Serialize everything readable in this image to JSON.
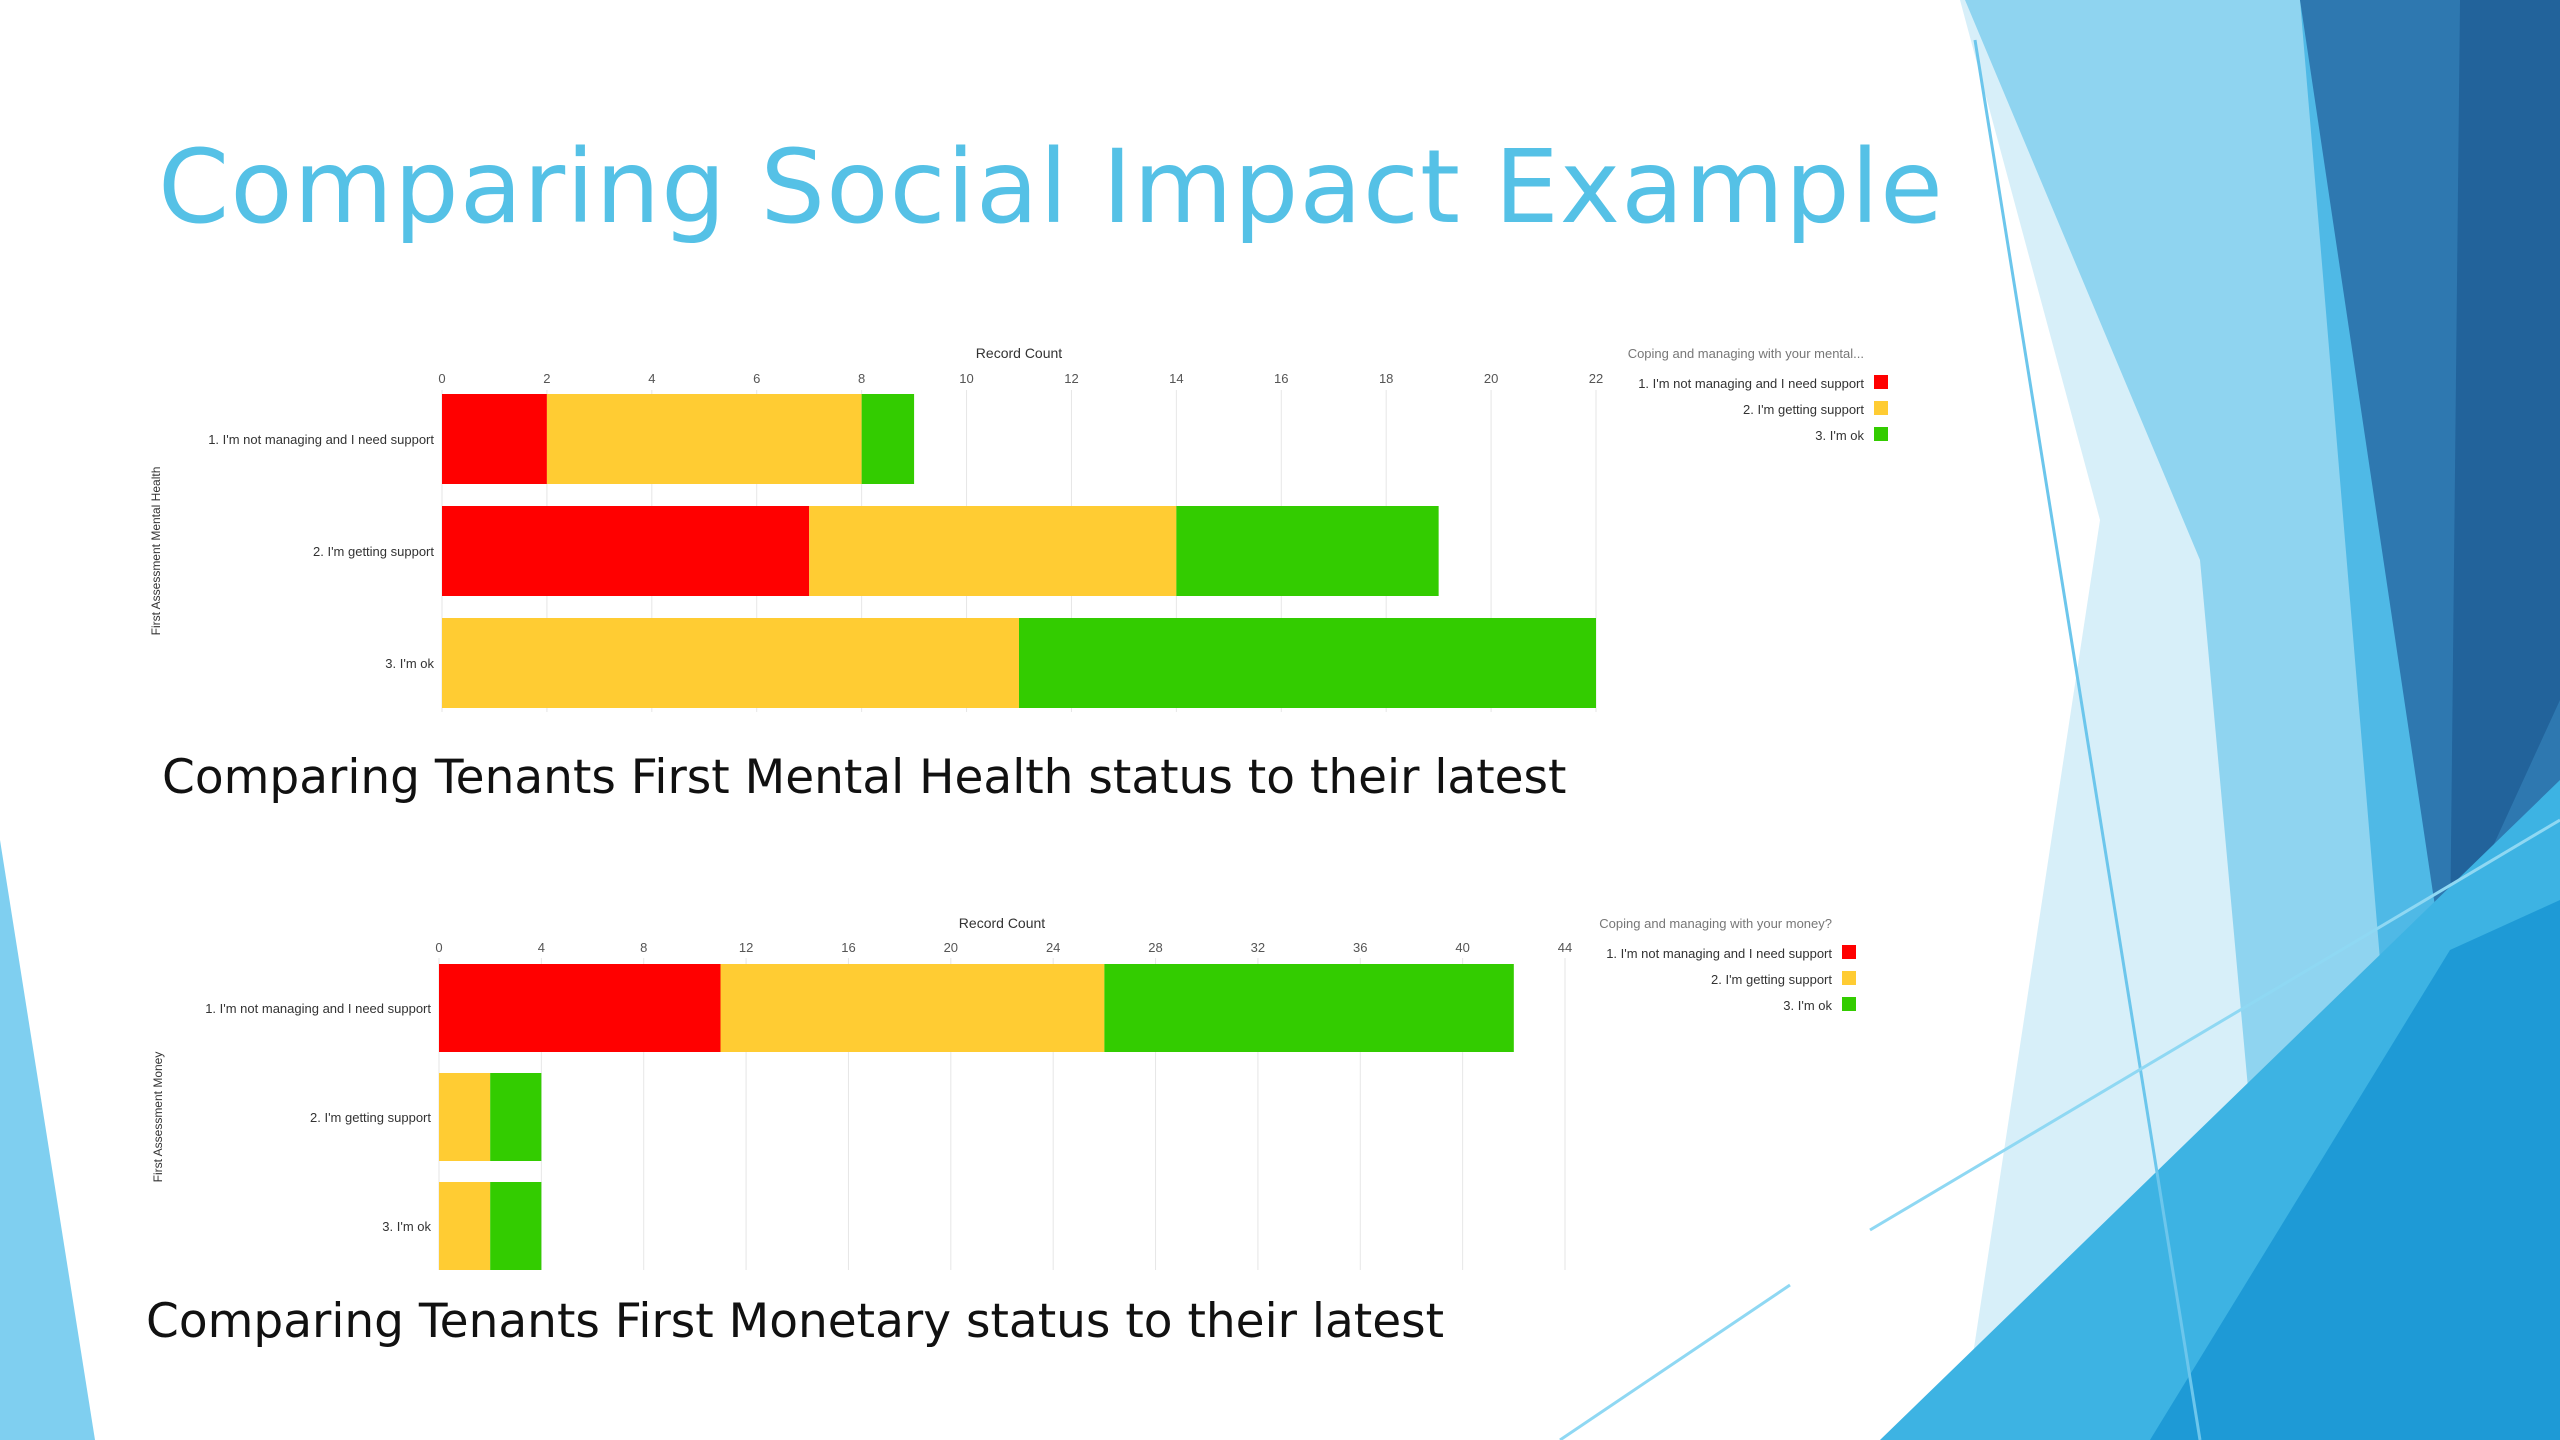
{
  "slide": {
    "title": "Comparing Social Impact Example",
    "captions": [
      "Comparing Tenants First Mental Health status to their latest",
      "Comparing Tenants First Monetary status to their latest"
    ]
  },
  "colors": {
    "title": "#55c1e6",
    "series": [
      "#ff0000",
      "#ffcc33",
      "#33cc00"
    ],
    "deco_light": "#aee0f5",
    "deco_mid": "#5cc4ea",
    "deco_dark": "#2e78b0"
  },
  "chart_data": [
    {
      "type": "bar",
      "orientation": "horizontal",
      "stacked": true,
      "xlabel": "Record Count",
      "ylabel": "First Assessment Mental Health",
      "categories": [
        "1. I'm not managing and I need support",
        "2. I'm getting support",
        "3. I'm ok"
      ],
      "series": [
        {
          "name": "1. I'm not managing and I need support",
          "values": [
            2,
            7,
            0
          ]
        },
        {
          "name": "2. I'm getting support",
          "values": [
            6,
            7,
            11
          ]
        },
        {
          "name": "3. I'm ok",
          "values": [
            1,
            5,
            11
          ]
        }
      ],
      "xticks": [
        0,
        2,
        4,
        6,
        8,
        10,
        12,
        14,
        16,
        18,
        20,
        22
      ],
      "xlim": [
        0,
        22
      ],
      "legend_title": "Coping and managing with your mental...",
      "legend_position": "top-right",
      "grid": true
    },
    {
      "type": "bar",
      "orientation": "horizontal",
      "stacked": true,
      "xlabel": "Record Count",
      "ylabel": "First Assessment Money",
      "categories": [
        "1. I'm not managing and I need support",
        "2. I'm getting support",
        "3. I'm ok"
      ],
      "series": [
        {
          "name": "1. I'm not managing and I need support",
          "values": [
            11,
            0,
            0
          ]
        },
        {
          "name": "2. I'm getting support",
          "values": [
            15,
            2,
            2
          ]
        },
        {
          "name": "3. I'm ok",
          "values": [
            16,
            2,
            2
          ]
        }
      ],
      "xticks": [
        0,
        4,
        8,
        12,
        16,
        20,
        24,
        28,
        32,
        36,
        40,
        44
      ],
      "xlim": [
        0,
        44
      ],
      "legend_title": "Coping and managing with your money?",
      "legend_position": "top-right",
      "grid": true
    }
  ]
}
